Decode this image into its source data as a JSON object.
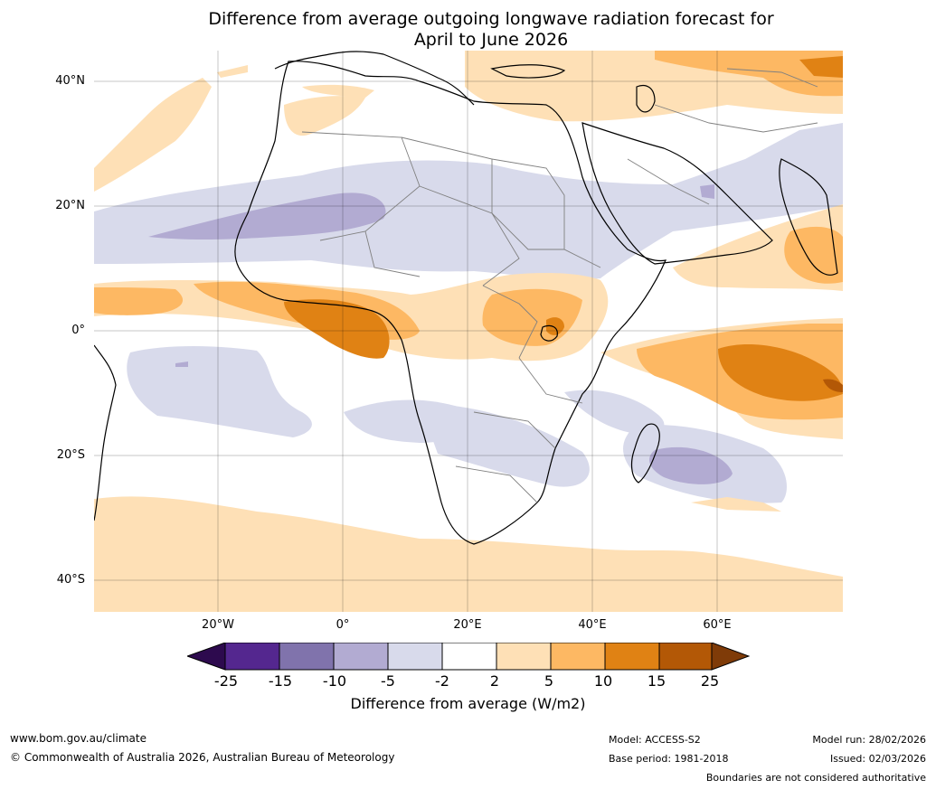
{
  "title": {
    "line1": "Difference from average outgoing longwave radiation forecast for",
    "line2": "April to June 2026"
  },
  "map": {
    "region": "Africa, Middle East and Indian Ocean",
    "lat_labels": [
      "40°N",
      "20°N",
      "0°",
      "20°S",
      "40°S"
    ],
    "lon_labels": [
      "20°W",
      "0°",
      "20°E",
      "40°E",
      "60°E"
    ]
  },
  "legend": {
    "ticks": [
      "-25",
      "-15",
      "-10",
      "-5",
      "-2",
      "2",
      "5",
      "10",
      "15",
      "25"
    ],
    "colors": [
      "#2d0a4e",
      "#54278f",
      "#8073ac",
      "#b2abd2",
      "#d8daeb",
      "#ffffff",
      "#fee0b6",
      "#fdb863",
      "#e08214",
      "#b35806",
      "#7f3b08"
    ],
    "label": "Difference from average (W/m2)"
  },
  "footer": {
    "website": "www.bom.gov.au/climate",
    "copyright": "© Commonwealth of Australia 2026, Australian Bureau of Meteorology",
    "model": "Model: ACCESS-S2",
    "base_period": "Base period: 1981-2018",
    "model_run": "Model run: 28/02/2026",
    "issued": "Issued: 02/03/2026",
    "disclaimer": "Boundaries are not considered authoritative"
  }
}
